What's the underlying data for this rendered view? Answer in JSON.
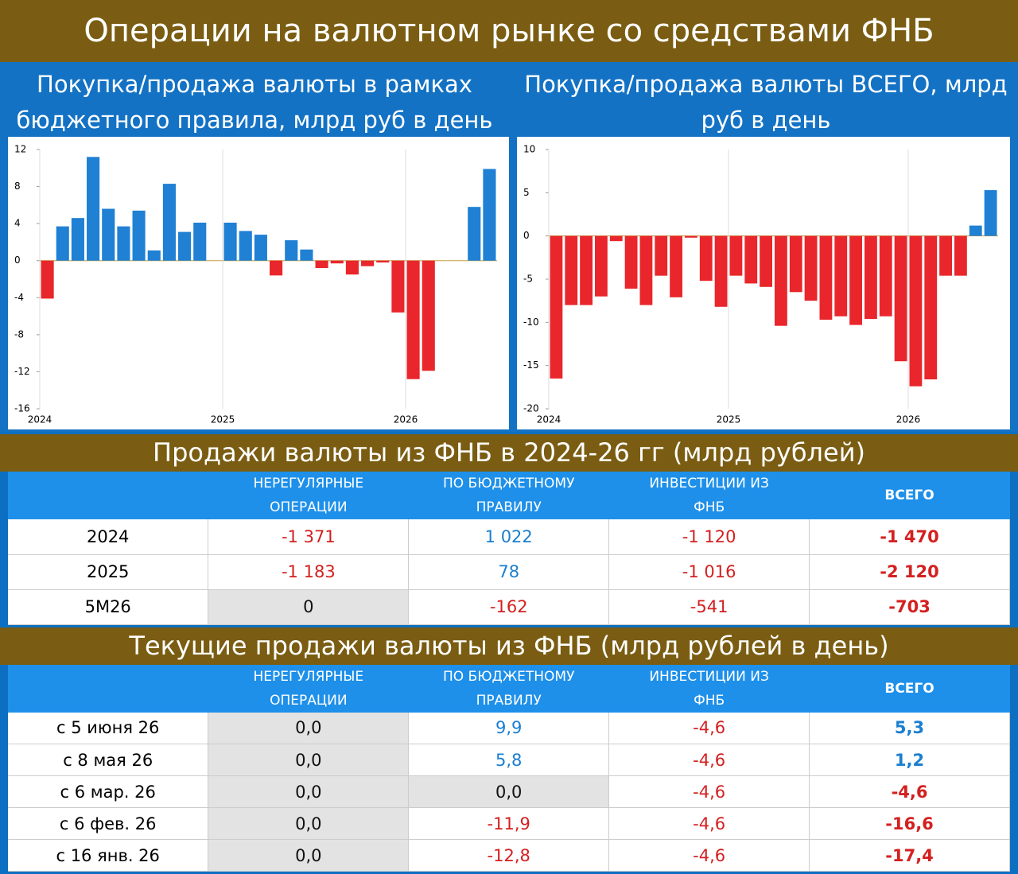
{
  "title": "Операции на валютном рынке со средствами ФНБ",
  "chart_data": [
    {
      "type": "bar",
      "title": "Покупка/продажа валюты в рамках бюджетного правила, млрд руб в день",
      "categories": [
        "2024",
        null,
        null,
        null,
        null,
        null,
        null,
        null,
        null,
        null,
        null,
        null,
        "2025",
        null,
        null,
        null,
        null,
        null,
        null,
        null,
        null,
        null,
        null,
        null,
        "2026",
        null,
        null,
        null,
        null,
        null
      ],
      "values": [
        -4.1,
        3.7,
        4.6,
        11.2,
        5.6,
        3.7,
        5.4,
        1.1,
        8.3,
        3.1,
        4.1,
        0,
        4.1,
        3.2,
        2.8,
        -1.6,
        2.2,
        1.2,
        -0.8,
        -0.3,
        -1.5,
        -0.6,
        -0.2,
        -5.6,
        -12.8,
        -11.9,
        0,
        0,
        5.8,
        9.9
      ],
      "color_positive": "#1f80d4",
      "color_negative": "#e8262b",
      "ylim": [
        -16,
        12
      ],
      "yticks": [
        12,
        8,
        4,
        0,
        -4,
        -8,
        -12,
        -16
      ]
    },
    {
      "type": "bar",
      "title": "Покупка/продажа валюты ВСЕГО, млрд руб в день",
      "categories": [
        "2024",
        null,
        null,
        null,
        null,
        null,
        null,
        null,
        null,
        null,
        null,
        null,
        "2025",
        null,
        null,
        null,
        null,
        null,
        null,
        null,
        null,
        null,
        null,
        null,
        "2026",
        null,
        null,
        null,
        null,
        null
      ],
      "values": [
        -16.5,
        -8,
        -8,
        -7,
        -0.6,
        -6.1,
        -8,
        -4.6,
        -7.1,
        -0.2,
        -5.2,
        -8.2,
        -4.6,
        -5.5,
        -5.9,
        -10.4,
        -6.5,
        -7.5,
        -9.7,
        -9.3,
        -10.3,
        -9.6,
        -9.3,
        -14.5,
        -17.4,
        -16.6,
        -4.6,
        -4.6,
        1.2,
        5.3
      ],
      "color_positive": "#1f80d4",
      "color_negative": "#e8262b",
      "ylim": [
        -20,
        10
      ],
      "yticks": [
        10,
        5,
        0,
        -5,
        -10,
        -15,
        -20
      ]
    }
  ],
  "table1": {
    "title": "Продажи валюты из ФНБ в 2024-26 гг (млрд рублей)",
    "columns": [
      "НЕРЕГУЛЯРНЫЕ ОПЕРАЦИИ",
      "ПО БЮДЖЕТНОМУ ПРАВИЛУ",
      "ИНВЕСТИЦИИ ИЗ ФНБ",
      "ВСЕГО"
    ],
    "rows": [
      {
        "label": "2024",
        "values": [
          "-1 371",
          "1 022",
          "-1 120",
          "-1 470"
        ]
      },
      {
        "label": "2025",
        "values": [
          "-1 183",
          "78",
          "-1 016",
          "-2 120"
        ]
      },
      {
        "label": "5M26",
        "values": [
          "0",
          "-162",
          "-541",
          "-703"
        ]
      }
    ]
  },
  "table2": {
    "title": "Текущие продажи валюты из ФНБ (млрд рублей в день)",
    "columns": [
      "НЕРЕГУЛЯРНЫЕ ОПЕРАЦИИ",
      "ПО БЮДЖЕТНОМУ ПРАВИЛУ",
      "ИНВЕСТИЦИИ ИЗ ФНБ",
      "ВСЕГО"
    ],
    "rows": [
      {
        "label": "с 5 июня 26",
        "values": [
          "0,0",
          "9,9",
          "-4,6",
          "5,3"
        ]
      },
      {
        "label": "с 8 мая 26",
        "values": [
          "0,0",
          "5,8",
          "-4,6",
          "1,2"
        ]
      },
      {
        "label": "с 6 мар. 26",
        "values": [
          "0,0",
          "0,0",
          "-4,6",
          "-4,6"
        ]
      },
      {
        "label": "с 6 фев. 26",
        "values": [
          "0,0",
          "-11,9",
          "-4,6",
          "-16,6"
        ]
      },
      {
        "label": "с 16 янв. 26",
        "values": [
          "0,0",
          "-12,8",
          "-4,6",
          "-17,4"
        ]
      }
    ]
  }
}
